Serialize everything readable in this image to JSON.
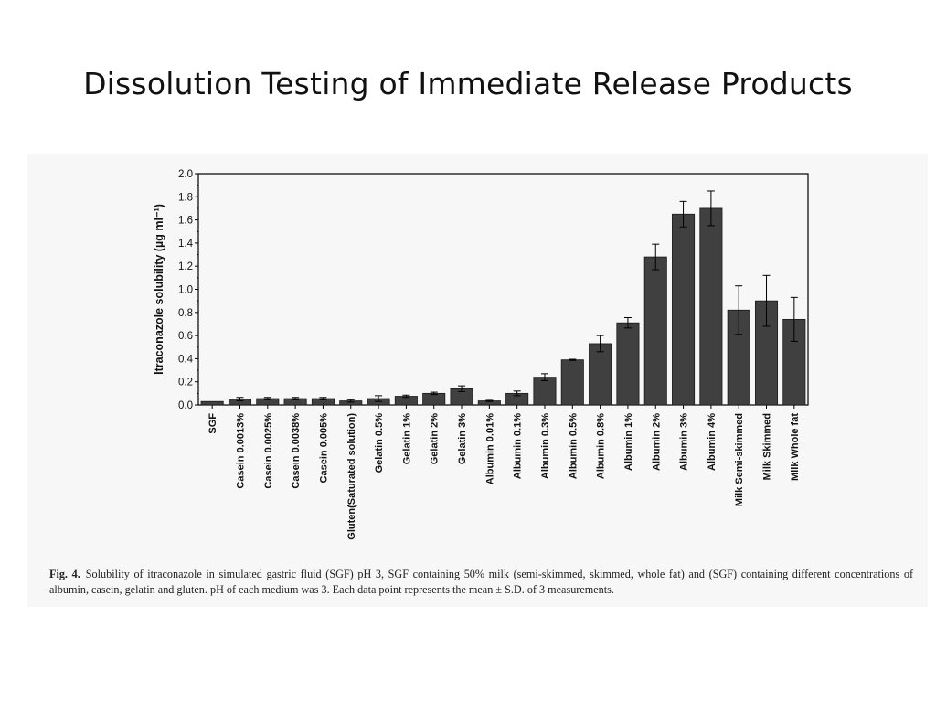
{
  "slide": {
    "title": "Dissolution Testing of Immediate Release Products"
  },
  "caption": {
    "label": "Fig. 4.",
    "text": "Solubility of itraconazole in simulated gastric fluid (SGF) pH 3, SGF containing 50% milk (semi-skimmed, skimmed, whole fat) and (SGF) containing different concentrations of albumin, casein, gelatin and gluten. pH of each medium was 3. Each data point represents the mean ± S.D. of 3 measurements."
  },
  "chart_data": {
    "type": "bar",
    "title": "",
    "xlabel": "",
    "ylabel": "Itraconazole solubility (µg ml⁻¹)",
    "ylim": [
      0,
      2.0
    ],
    "yticks": [
      "0.0",
      "0.2",
      "0.4",
      "0.6",
      "0.8",
      "1.0",
      "1.2",
      "1.4",
      "1.6",
      "1.8",
      "2.0"
    ],
    "grid": false,
    "legend": "none",
    "bar_color": "#404040",
    "categories": [
      "SGF",
      "Casein 0.0013%",
      "Casein 0.0025%",
      "Casein 0.0038%",
      "Casein 0.005%",
      "Gluten(Saturated solution)",
      "Gelatin 0.5%",
      "Gelatin 1%",
      "Gelatin 2%",
      "Gelatin 3%",
      "Albumin  0.01%",
      "Albumin 0.1%",
      "Albumin 0.3%",
      "Albumin 0.5%",
      "Albumin 0.8%",
      "Albumin 1%",
      "Albumin 2%",
      "Albumin 3%",
      "Albumin 4%",
      "Milk Semi-skimmed",
      "Milk Skimmed",
      "Milk Whole fat"
    ],
    "values": [
      0.03,
      0.05,
      0.055,
      0.055,
      0.055,
      0.035,
      0.055,
      0.075,
      0.1,
      0.14,
      0.035,
      0.1,
      0.24,
      0.39,
      0.53,
      0.71,
      1.28,
      1.65,
      1.7,
      0.82,
      0.9,
      0.74
    ],
    "errors": [
      0.0,
      0.015,
      0.01,
      0.01,
      0.01,
      0.01,
      0.025,
      0.01,
      0.01,
      0.025,
      0.005,
      0.02,
      0.03,
      0.005,
      0.07,
      0.045,
      0.11,
      0.11,
      0.15,
      0.21,
      0.22,
      0.19
    ]
  }
}
